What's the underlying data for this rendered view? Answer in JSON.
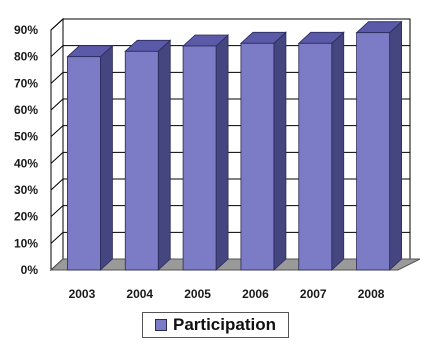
{
  "chart_data": {
    "type": "bar",
    "categories": [
      "2003",
      "2004",
      "2005",
      "2006",
      "2007",
      "2008"
    ],
    "series": [
      {
        "name": "Participation",
        "values": [
          80,
          82,
          84,
          85,
          85,
          89
        ]
      }
    ],
    "ylim": [
      0,
      90
    ],
    "yticks": [
      "0%",
      "10%",
      "20%",
      "30%",
      "40%",
      "50%",
      "60%",
      "70%",
      "80%",
      "90%"
    ],
    "ytick_values": [
      0,
      10,
      20,
      30,
      40,
      50,
      60,
      70,
      80,
      90
    ],
    "grid": true,
    "three_d": true,
    "legend_position": "bottom",
    "colors": {
      "bar_front": "#7b7bc6",
      "bar_side": "#45457f",
      "bar_top": "#5a5aa8",
      "floor": "#9a9a9a",
      "grid": "#000000"
    }
  }
}
